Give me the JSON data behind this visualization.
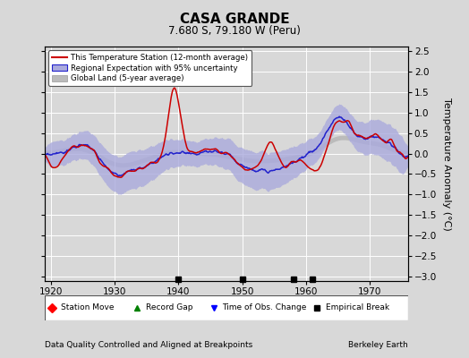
{
  "title": "CASA GRANDE",
  "subtitle": "7.680 S, 79.180 W (Peru)",
  "xlabel_note": "Data Quality Controlled and Aligned at Breakpoints",
  "credit": "Berkeley Earth",
  "ylabel": "Temperature Anomaly (°C)",
  "xlim": [
    1919,
    1976
  ],
  "ylim": [
    -3.1,
    2.6
  ],
  "yticks": [
    -3,
    -2.5,
    -2,
    -1.5,
    -1,
    -0.5,
    0,
    0.5,
    1,
    1.5,
    2,
    2.5
  ],
  "xticks": [
    1920,
    1930,
    1940,
    1950,
    1960,
    1970
  ],
  "background_color": "#d8d8d8",
  "plot_bg_color": "#d8d8d8",
  "grid_color": "#ffffff",
  "station_line_color": "#cc0000",
  "regional_line_color": "#2222cc",
  "regional_fill_color": "#aaaadd",
  "global_land_color": "#bbbbbb",
  "empirical_break_years": [
    1940,
    1950,
    1958,
    1961
  ],
  "legend_station": "This Temperature Station (12-month average)",
  "legend_regional": "Regional Expectation with 95% uncertainty",
  "legend_global": "Global Land (5-year average)",
  "legend_station_move": "Station Move",
  "legend_record_gap": "Record Gap",
  "legend_time_obs": "Time of Obs. Change",
  "legend_empirical": "Empirical Break"
}
